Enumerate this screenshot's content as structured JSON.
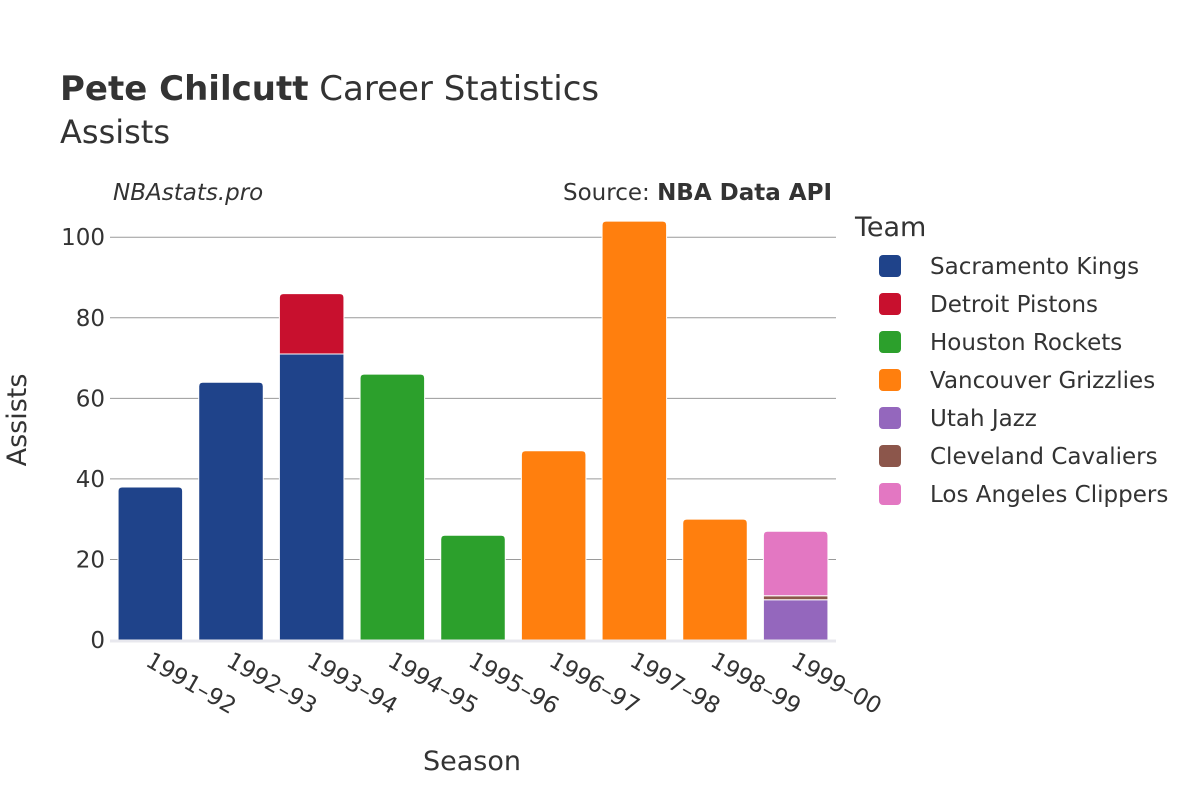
{
  "chart_data": {
    "type": "bar",
    "stacked": true,
    "title_bold": "Pete Chilcutt",
    "title_rest": " Career Statistics",
    "subtitle": "Assists",
    "watermark": "NBAstats.pro",
    "source_prefix": "Source: ",
    "source_name": "NBA Data API",
    "xlabel": "Season",
    "ylabel": "Assists",
    "ylim": [
      0,
      108
    ],
    "yticks": [
      0,
      20,
      40,
      60,
      80,
      100
    ],
    "grid": true,
    "legend_title": "Team",
    "legend_position": "right",
    "categories": [
      "1991–92",
      "1992–93",
      "1993–94",
      "1994–95",
      "1995–96",
      "1996–97",
      "1997–98",
      "1998–99",
      "1999–00"
    ],
    "series": [
      {
        "name": "Sacramento Kings",
        "color": "#1f438a",
        "values": [
          38,
          64,
          71,
          0,
          0,
          0,
          0,
          0,
          0
        ]
      },
      {
        "name": "Detroit Pistons",
        "color": "#c8102e",
        "values": [
          0,
          0,
          15,
          0,
          0,
          0,
          0,
          0,
          0
        ]
      },
      {
        "name": "Houston Rockets",
        "color": "#2ca02c",
        "values": [
          0,
          0,
          0,
          66,
          26,
          0,
          0,
          0,
          0
        ]
      },
      {
        "name": "Vancouver Grizzlies",
        "color": "#ff7f0e",
        "values": [
          0,
          0,
          0,
          0,
          0,
          47,
          104,
          30,
          0
        ]
      },
      {
        "name": "Utah Jazz",
        "color": "#9467bd",
        "values": [
          0,
          0,
          0,
          0,
          0,
          0,
          0,
          0,
          10
        ]
      },
      {
        "name": "Cleveland Cavaliers",
        "color": "#8c564b",
        "values": [
          0,
          0,
          0,
          0,
          0,
          0,
          0,
          0,
          1
        ]
      },
      {
        "name": "Los Angeles Clippers",
        "color": "#e377c2",
        "values": [
          0,
          0,
          0,
          0,
          0,
          0,
          0,
          0,
          16
        ]
      }
    ]
  }
}
